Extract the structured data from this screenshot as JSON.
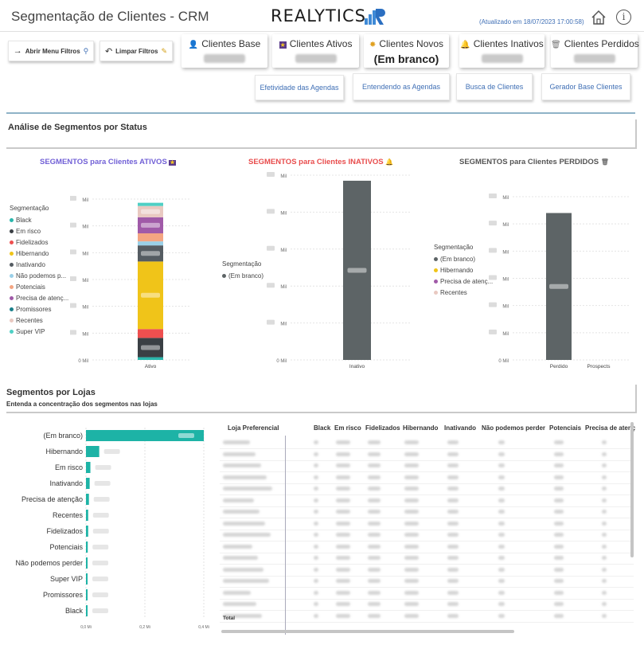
{
  "header": {
    "title": "Segmentação de Clientes - CRM",
    "logo_text": "REALYTICS",
    "updated": "(Atualizado em 18/07/2023 17:00:58)"
  },
  "toolbar": {
    "open_filters": "Abrir Menu Filtros",
    "clear_filters": "Limpar Filtros"
  },
  "cards": [
    {
      "key": "base",
      "label": "Clientes Base",
      "value": "",
      "icon": "user-icon",
      "blurred": true
    },
    {
      "key": "ativos",
      "label": "Clientes Ativos",
      "value": "",
      "icon": "star-badge-icon",
      "blurred": true
    },
    {
      "key": "novos",
      "label": "Clientes Novos",
      "value": "(Em branco)",
      "icon": "new-star-icon",
      "blurred": false
    },
    {
      "key": "inativos",
      "label": "Clientes Inativos",
      "value": "",
      "icon": "bell-icon",
      "blurred": true
    },
    {
      "key": "perdidos",
      "label": "Clientes Perdidos",
      "value": "",
      "icon": "trash-icon",
      "blurred": true
    }
  ],
  "nav": [
    "Efetividade das Agendas",
    "Entendendo as Agendas",
    "Busca de Clientes",
    "Gerador Base Clientes"
  ],
  "sections": {
    "status_title": "Análise de Segmentos por Status",
    "lojas_title": "Segmentos por Lojas",
    "lojas_subtitle": "Entenda a concentração dos segmentos nas lojas"
  },
  "colors": {
    "ativos": "#7160d6",
    "inativos": "#e84c4c",
    "perdidos": "#555555",
    "teal": "#1db3a6"
  },
  "chart_data": [
    {
      "type": "bar",
      "stacked": true,
      "title": "SEGMENTOS para Clientes ATIVOS",
      "legend_title": "Segmentação",
      "categories": [
        "Ativo"
      ],
      "yticks": [
        "0 Mil",
        "Mil",
        "Mil",
        "Mil",
        "Mil",
        "Mil",
        "Mil"
      ],
      "series": [
        {
          "name": "Black",
          "color": "#2ab7ac",
          "share": 0.017
        },
        {
          "name": "Em risco",
          "color": "#3a3f44",
          "share": 0.12
        },
        {
          "name": "Fidelizados",
          "color": "#ee4f4f",
          "share": 0.055
        },
        {
          "name": "Hibernando",
          "color": "#f0c419",
          "share": 0.42
        },
        {
          "name": "Inativando",
          "color": "#555c62",
          "share": 0.1
        },
        {
          "name": "Não podemos p...",
          "color": "#9ad0e8",
          "share": 0.025
        },
        {
          "name": "Potenciais",
          "color": "#f4a582",
          "share": 0.05
        },
        {
          "name": "Precisa de atenç...",
          "color": "#a05aa8",
          "share": 0.1
        },
        {
          "name": "Promissores",
          "color": "#1a7f8a",
          "share": 0.0
        },
        {
          "name": "Recentes",
          "color": "#e9c9c1",
          "share": 0.07
        },
        {
          "name": "Super VIP",
          "color": "#4fd0c5",
          "share": 0.02
        }
      ]
    },
    {
      "type": "bar",
      "title": "SEGMENTOS para Clientes INATIVOS",
      "legend_title": "Segmentação",
      "categories": [
        "Inativo"
      ],
      "yticks": [
        "0 Mil",
        "Mil",
        "Mil",
        "Mil",
        "Mil",
        "Mil"
      ],
      "series": [
        {
          "name": "(Em branco)",
          "color": "#5d6466",
          "share": 0.97
        }
      ]
    },
    {
      "type": "bar",
      "stacked": true,
      "title": "SEGMENTOS para Clientes PERDIDOS",
      "legend_title": "Segmentação",
      "categories": [
        "Perdido",
        "Prospects"
      ],
      "yticks": [
        "0 Mil",
        "Mil",
        "Mil",
        "Mil",
        "Mil",
        "Mil",
        "Mil"
      ],
      "series": [
        {
          "name": "(Em branco)",
          "color": "#5d6466",
          "share": 0.9
        },
        {
          "name": "Hibernando",
          "color": "#f0c419",
          "share": 0.0
        },
        {
          "name": "Precisa de atenç...",
          "color": "#a05aa8",
          "share": 0.0
        },
        {
          "name": "Recentes",
          "color": "#e9c9c1",
          "share": 0.0
        }
      ]
    },
    {
      "type": "bar",
      "orientation": "horizontal",
      "categories": [
        "(Em branco)",
        "Hibernando",
        "Em risco",
        "Inativando",
        "Precisa de atenção",
        "Recentes",
        "Fidelizados",
        "Potenciais",
        "Não podemos perder",
        "Super VIP",
        "Promissores",
        "Black"
      ],
      "values": [
        0.8,
        0.09,
        0.03,
        0.025,
        0.02,
        0.015,
        0.015,
        0.012,
        0.009,
        0.006,
        0.004,
        0.003
      ],
      "xticks": [
        "0,0 Mi",
        "0,2 Mi",
        "0,4 Mi"
      ],
      "xlim": [
        0,
        0.8
      ]
    }
  ],
  "table": {
    "columns": [
      "Loja Preferencial",
      "Black",
      "Em risco",
      "Fidelizados",
      "Hibernando",
      "Inativando",
      "Não podemos perder",
      "Potenciais",
      "Precisa de atenç"
    ],
    "total_label": "Total",
    "row_count": 16
  }
}
